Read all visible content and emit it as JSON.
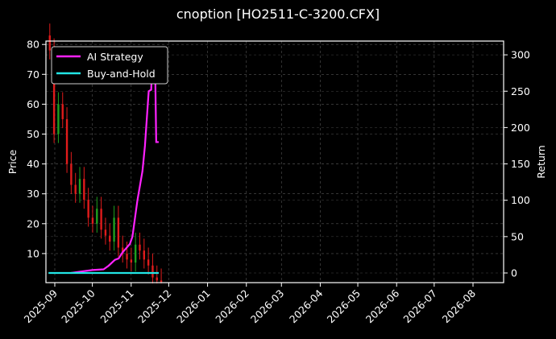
{
  "chart_data": {
    "type": "line",
    "title": "cnoption [HO2511-C-3200.CFX]",
    "xlabel": "",
    "ylabel": "Price",
    "ylabel_right": "Return",
    "ylim": [
      0,
      81
    ],
    "ylim_right": [
      -14,
      318
    ],
    "grid": true,
    "legend_position": "upper left",
    "x_ticks": [
      "2025-09",
      "2025-10",
      "2025-11",
      "2025-12",
      "2026-01",
      "2026-02",
      "2026-03",
      "2026-04",
      "2026-05",
      "2026-06",
      "2026-07",
      "2026-08"
    ],
    "y_ticks": [
      10,
      20,
      30,
      40,
      50,
      60,
      70,
      80
    ],
    "y_ticks_right": [
      0,
      50,
      100,
      150,
      200,
      250,
      300
    ],
    "legend": [
      "AI Strategy",
      "Buy-and-Hold"
    ],
    "series": [
      {
        "name": "AI Strategy",
        "axis": "right",
        "color": "#ff22ff",
        "x": [
          "2025-09-14",
          "2025-09-22",
          "2025-10-01",
          "2025-10-10",
          "2025-10-14",
          "2025-10-19",
          "2025-10-22",
          "2025-10-25",
          "2025-10-28",
          "2025-10-31",
          "2025-11-02",
          "2025-11-04",
          "2025-11-06",
          "2025-11-08",
          "2025-11-10",
          "2025-11-12",
          "2025-11-15",
          "2025-11-17",
          "2025-11-18",
          "2025-11-20",
          "2025-11-21",
          "2025-11-23"
        ],
        "values": [
          0,
          2,
          4,
          5,
          10,
          18,
          20,
          28,
          34,
          40,
          50,
          75,
          100,
          120,
          140,
          175,
          250,
          252,
          300,
          300,
          180,
          180
        ]
      },
      {
        "name": "Buy-and-Hold",
        "axis": "right",
        "color": "#22e5e5",
        "x": [
          "2025-08-27",
          "2025-11-23"
        ],
        "values": [
          0,
          0
        ]
      }
    ],
    "candles": {
      "axis": "left",
      "up_color": "#1fa01f",
      "down_color": "#e01b1b",
      "x_range": [
        "2025-08-28",
        "2025-11-25"
      ],
      "approx_close": [
        78,
        50,
        60,
        55,
        40,
        33,
        30,
        35,
        28,
        22,
        20,
        25,
        18,
        16,
        14,
        22,
        12,
        10,
        8,
        7,
        13,
        11,
        8,
        6,
        2,
        1,
        0.5
      ]
    }
  }
}
